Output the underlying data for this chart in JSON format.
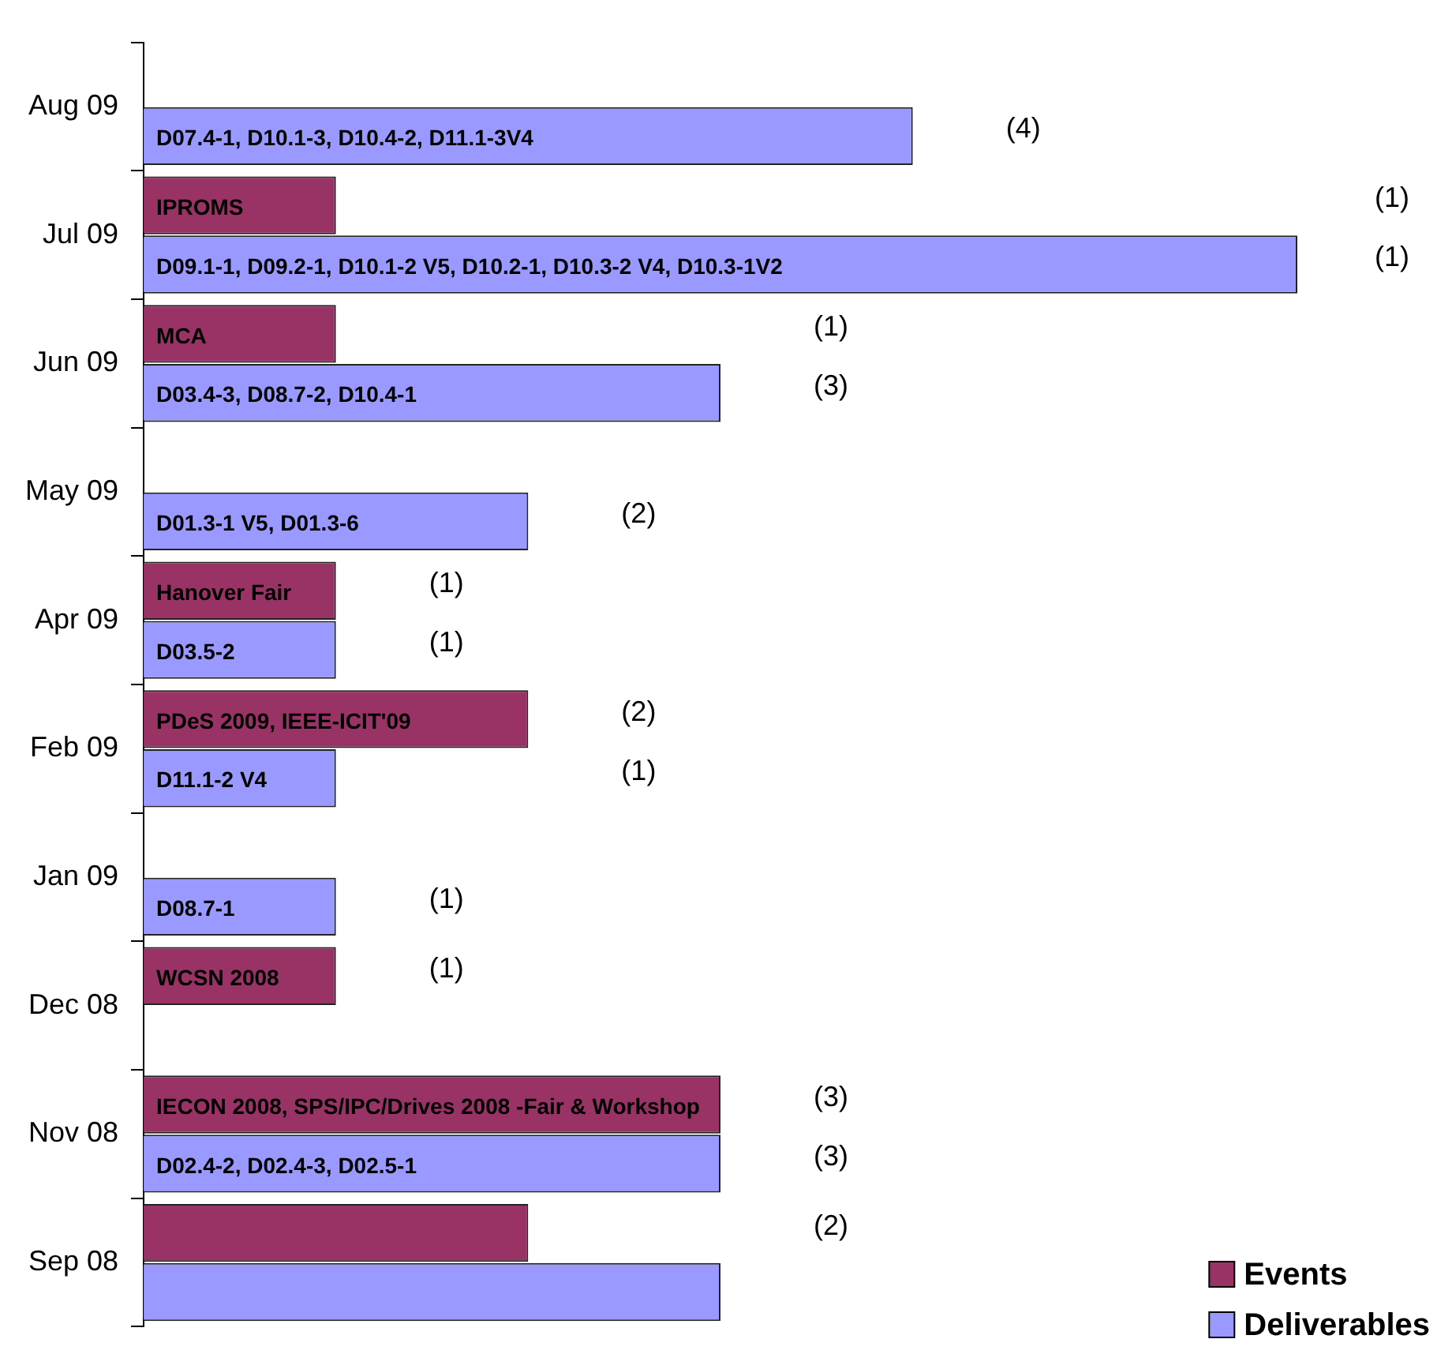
{
  "chart_data": {
    "type": "bar",
    "orientation": "horizontal",
    "categories": [
      "Aug 09",
      "Jul 09",
      "Jun 09",
      "May 09",
      "Apr 09",
      "Feb 09",
      "Jan 09",
      "Dec 08",
      "Nov 08",
      "Sep 08"
    ],
    "series": [
      {
        "name": "Events",
        "color": "#993366",
        "values": [
          null,
          1,
          1,
          null,
          1,
          2,
          null,
          1,
          3,
          2
        ],
        "value_labels": [
          null,
          "IPROMS",
          "MCA",
          null,
          "Hanover Fair",
          "PDeS 2009, IEEE-ICIT'09",
          null,
          "WCSN 2008",
          "IECON 2008, SPS/IPC/Drives 2008 -Fair & Workshop",
          null
        ]
      },
      {
        "name": "Deliverables",
        "color": "#9999ff",
        "values": [
          4,
          6,
          3,
          2,
          1,
          1,
          1,
          null,
          3,
          3
        ],
        "value_labels": [
          "D07.4-1, D10.1-3, D10.4-2, D11.1-3V4",
          "D09.1-1, D09.2-1, D10.1-2 V5, D10.2-1, D10.3-2 V4, D10.3-1V2",
          "D03.4-3, D08.7-2, D10.4-1",
          "D01.3-1 V5, D01.3-6",
          "D03.5-2",
          "D11.1-2 V4",
          "D08.7-1",
          null,
          "D02.4-2, D02.4-3, D02.5-1",
          null
        ]
      }
    ],
    "tick_labels": "y",
    "legend": "bottom right",
    "annotations": [
      "(4)",
      "(1)",
      "(1)",
      "(1)",
      "(3)",
      "(2)",
      "(1)",
      "(1)",
      "(2)",
      "(1)",
      "(1)",
      "(1)",
      "(3)",
      "(3)",
      "(2)"
    ]
  }
}
